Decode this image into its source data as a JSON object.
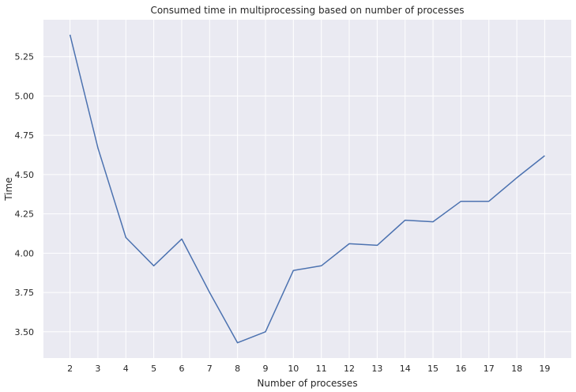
{
  "chart_data": {
    "type": "line",
    "title": "Consumed time in multiprocessing based on number of processes",
    "xlabel": "Number of processes",
    "ylabel": "Time",
    "x": [
      2,
      3,
      4,
      5,
      6,
      7,
      8,
      9,
      10,
      11,
      12,
      13,
      14,
      15,
      16,
      17,
      18,
      19
    ],
    "series": [
      {
        "values": [
          5.39,
          4.67,
          4.1,
          3.92,
          4.09,
          3.75,
          3.43,
          3.5,
          3.89,
          3.92,
          4.06,
          4.05,
          4.21,
          4.2,
          4.33,
          4.33,
          4.48,
          4.62
        ]
      }
    ],
    "xticks": [
      "2",
      "3",
      "4",
      "5",
      "6",
      "7",
      "8",
      "9",
      "10",
      "11",
      "12",
      "13",
      "14",
      "15",
      "16",
      "17",
      "18",
      "19"
    ],
    "yticks": [
      "3.50",
      "3.75",
      "4.00",
      "4.25",
      "4.50",
      "4.75",
      "5.00",
      "5.25"
    ],
    "xlim": [
      1.05,
      19.95
    ],
    "ylim": [
      3.333,
      5.485
    ],
    "grid": true,
    "colors": {
      "background": "#eaeaf2",
      "grid": "#ffffff",
      "line": "#4c72b0",
      "text": "#262626"
    }
  }
}
